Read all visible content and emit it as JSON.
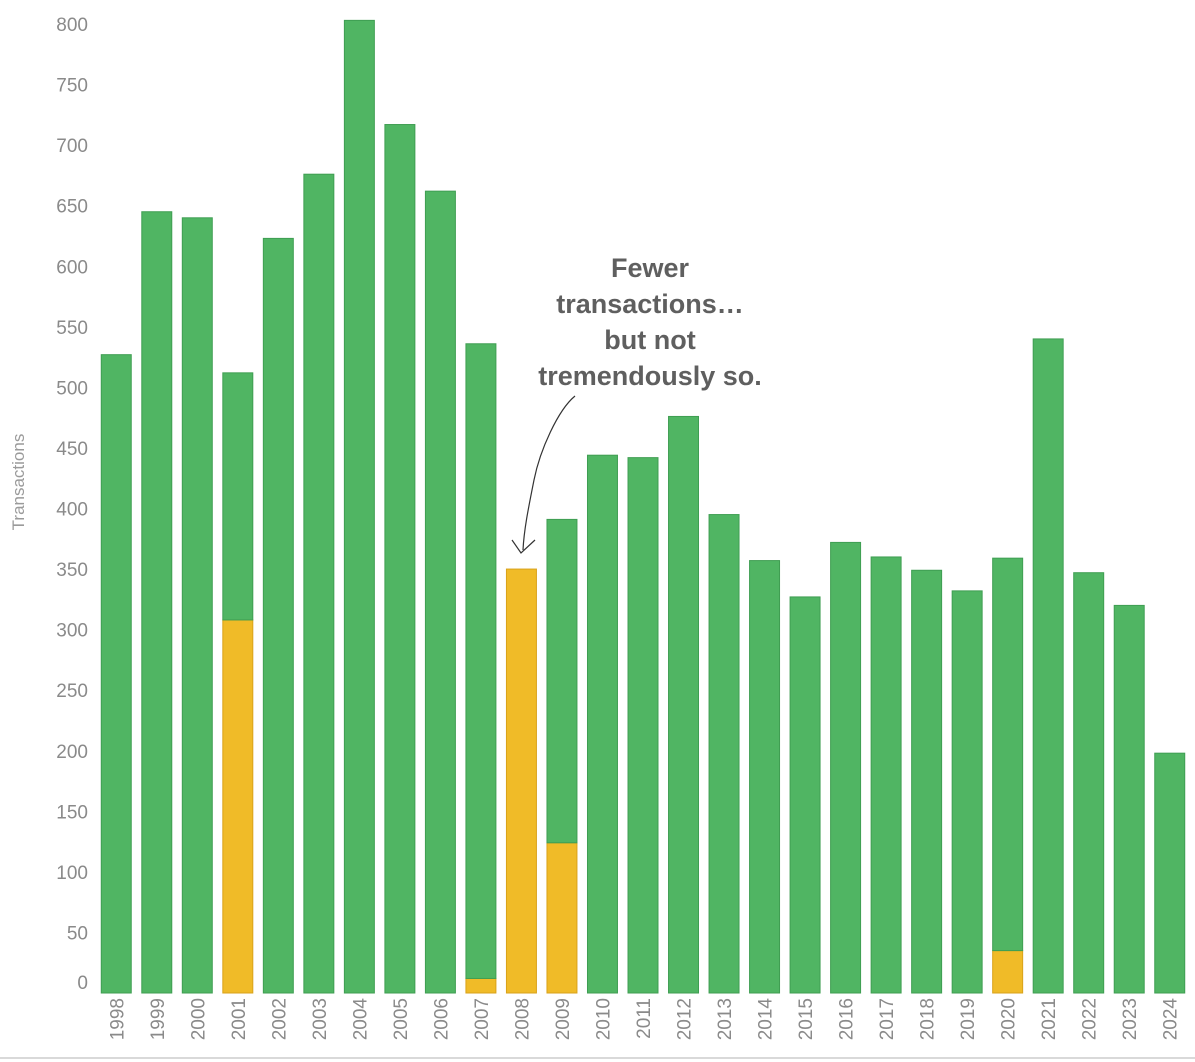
{
  "chart_data": {
    "type": "bar",
    "stacked": true,
    "ylabel": "Transactions",
    "xlabel": "",
    "ylim": [
      0,
      800
    ],
    "yticks": [
      0,
      50,
      100,
      150,
      200,
      250,
      300,
      350,
      400,
      450,
      500,
      550,
      600,
      650,
      700,
      750,
      800
    ],
    "categories": [
      "1998",
      "1999",
      "2000",
      "2001",
      "2002",
      "2003",
      "2004",
      "2005",
      "2006",
      "2007",
      "2008",
      "2009",
      "2010",
      "2011",
      "2012",
      "2013",
      "2014",
      "2015",
      "2016",
      "2017",
      "2018",
      "2019",
      "2020",
      "2021",
      "2022",
      "2023",
      "2024"
    ],
    "series": [
      {
        "color": "#f0bb28",
        "values": [
          0,
          0,
          0,
          308,
          0,
          0,
          0,
          0,
          0,
          12,
          350,
          124,
          0,
          0,
          0,
          0,
          0,
          0,
          0,
          0,
          0,
          0,
          35,
          0,
          0,
          0,
          0
        ]
      },
      {
        "color": "#50b563",
        "values": [
          527,
          645,
          640,
          204,
          623,
          676,
          803,
          717,
          662,
          524,
          0,
          267,
          444,
          442,
          476,
          395,
          357,
          327,
          372,
          360,
          349,
          332,
          324,
          540,
          347,
          320,
          198
        ]
      }
    ],
    "grid": false,
    "legend": "none",
    "annotation": {
      "lines": [
        "Fewer",
        "transactions…",
        "but not",
        "tremendously so."
      ],
      "target_category": "2008"
    }
  }
}
